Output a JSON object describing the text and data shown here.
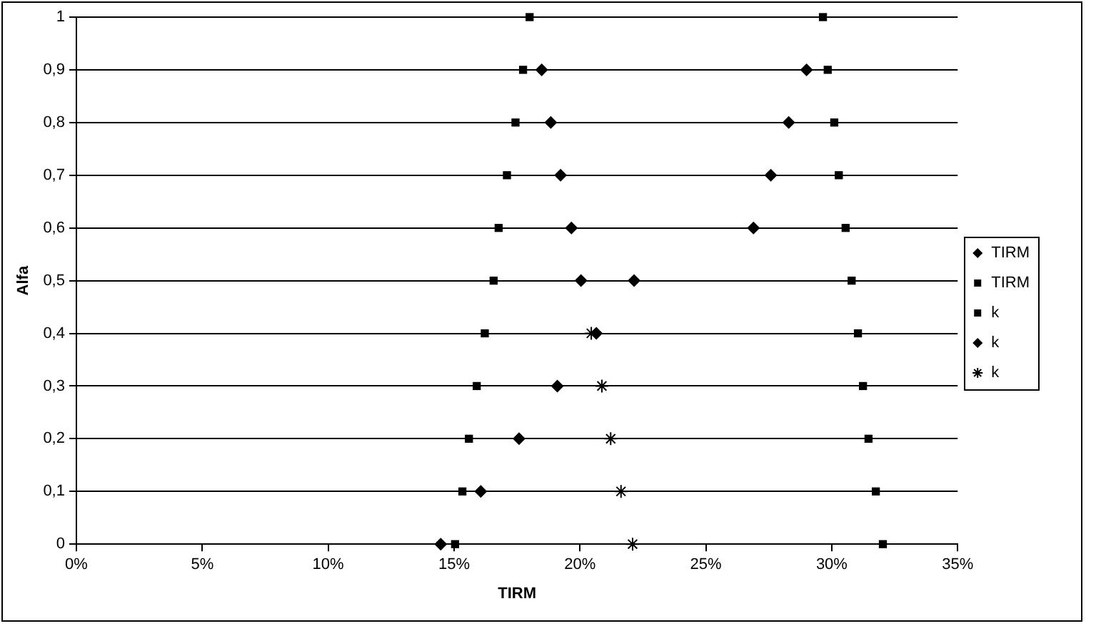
{
  "chart_data": {
    "type": "scatter",
    "xlabel": "TIRM",
    "ylabel": "Alfa",
    "xlim": [
      0,
      35
    ],
    "xticks": [
      {
        "value": 0,
        "label": "0%"
      },
      {
        "value": 5,
        "label": "5%"
      },
      {
        "value": 10,
        "label": "10%"
      },
      {
        "value": 15,
        "label": "15%"
      },
      {
        "value": 20,
        "label": "20%"
      },
      {
        "value": 25,
        "label": "25%"
      },
      {
        "value": 30,
        "label": "30%"
      },
      {
        "value": 35,
        "label": "35%"
      }
    ],
    "ylim": [
      0,
      1
    ],
    "yticks": [
      0,
      {
        "value": 0.1,
        "label": "0,1"
      },
      {
        "value": 0.2,
        "label": "0,2"
      },
      {
        "value": 0.3,
        "label": "0,3"
      },
      {
        "value": 0.4,
        "label": "0,4"
      },
      {
        "value": 0.5,
        "label": "0,5"
      },
      {
        "value": 0.6,
        "label": "0,6"
      },
      {
        "value": 0.7,
        "label": "0,7"
      },
      {
        "value": 0.8,
        "label": "0,8"
      },
      {
        "value": 0.9,
        "label": "0,9"
      },
      1
    ],
    "grid": "y",
    "legend": "right",
    "series": [
      {
        "name": "TIRM",
        "color": "#000000",
        "marker": "diamond",
        "x": [
          20.04,
          19.66,
          19.23,
          18.84,
          18.48,
          22.15,
          26.89,
          27.58,
          28.29,
          29.0
        ],
        "values": [
          0.5,
          0.6,
          0.7,
          0.8,
          0.9,
          0.5,
          0.6,
          0.7,
          0.8,
          0.9
        ]
      },
      {
        "name": "TIRM",
        "color": "#000000",
        "marker": "square",
        "x": [
          15.04,
          15.33,
          15.59,
          15.9,
          16.22,
          16.57,
          16.77,
          17.1,
          17.44,
          17.74,
          18.0
        ],
        "values": [
          0,
          0.1,
          0.2,
          0.3,
          0.4,
          0.5,
          0.6,
          0.7,
          0.8,
          0.9,
          1
        ]
      },
      {
        "name": "k",
        "color": "#000000",
        "marker": "square",
        "x": [
          32.03,
          31.75,
          31.46,
          31.24,
          31.04,
          30.79,
          30.55,
          30.28,
          30.1,
          29.84,
          29.65
        ],
        "values": [
          0,
          0.1,
          0.2,
          0.3,
          0.4,
          0.5,
          0.6,
          0.7,
          0.8,
          0.9,
          1
        ]
      },
      {
        "name": "k",
        "color": "#000000",
        "marker": "diamond",
        "x": [
          14.47,
          16.06,
          17.58,
          19.1,
          20.65
        ],
        "values": [
          0,
          0.1,
          0.2,
          0.3,
          0.4
        ]
      },
      {
        "name": "k",
        "color": "#000000",
        "marker": "cross",
        "x": [
          22.09,
          21.63,
          21.22,
          20.87,
          20.45
        ],
        "values": [
          0,
          0.1,
          0.2,
          0.3,
          0.4
        ]
      }
    ]
  }
}
